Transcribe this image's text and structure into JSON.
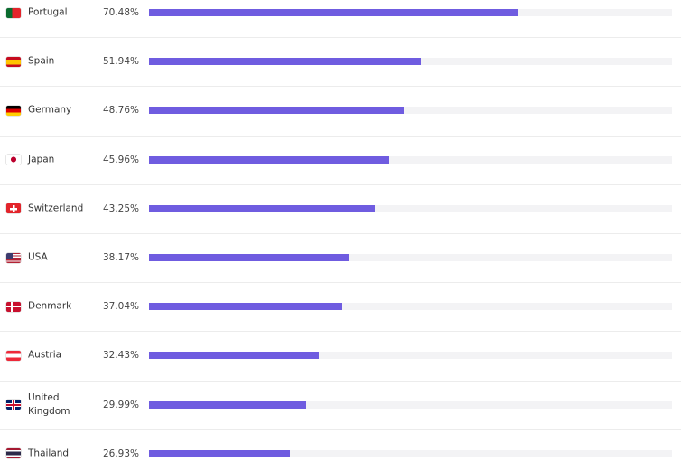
{
  "chart_data": {
    "type": "bar",
    "orientation": "horizontal",
    "color": "#6f5ce0",
    "categories": [
      "Portugal",
      "Spain",
      "Germany",
      "Japan",
      "Switzerland",
      "USA",
      "Denmark",
      "Austria",
      "United Kingdom",
      "Thailand"
    ],
    "values": [
      70.48,
      51.94,
      48.76,
      45.96,
      43.25,
      38.17,
      37.04,
      32.43,
      29.99,
      26.93
    ],
    "value_labels": [
      "70.48%",
      "51.94%",
      "48.76%",
      "45.96%",
      "43.25%",
      "38.17%",
      "37.04%",
      "32.43%",
      "29.99%",
      "26.93%"
    ],
    "xlim": [
      0,
      100
    ]
  }
}
